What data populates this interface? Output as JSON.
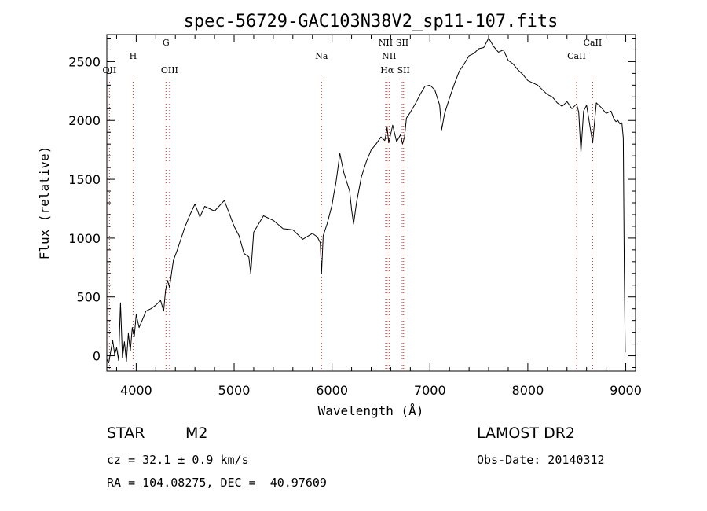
{
  "chart_data": {
    "type": "line",
    "title": "spec-56729-GAC103N38V2_sp11-107.fits",
    "xlabel": "Wavelength (Å)",
    "ylabel": "Flux (relative)",
    "xlim": [
      3700,
      9100
    ],
    "ylim": [
      -130,
      2730
    ],
    "x_ticks": [
      4000,
      5000,
      6000,
      7000,
      8000,
      9000
    ],
    "y_ticks": [
      0,
      500,
      1000,
      1500,
      2000,
      2500
    ],
    "grid": false,
    "series": [
      {
        "x": [
          3700,
          3720,
          3740,
          3760,
          3780,
          3800,
          3820,
          3840,
          3860,
          3880,
          3900,
          3920,
          3940,
          3960,
          3980,
          4000,
          4030,
          4060,
          4100,
          4150,
          4200,
          4250,
          4280,
          4300,
          4320,
          4340,
          4360,
          4380,
          4420,
          4460,
          4500,
          4550,
          4600,
          4650,
          4700,
          4800,
          4900,
          5000,
          5050,
          5100,
          5150,
          5170,
          5200,
          5300,
          5400,
          5500,
          5600,
          5700,
          5800,
          5850,
          5880,
          5893,
          5910,
          5950,
          6000,
          6020,
          6040,
          6060,
          6080,
          6100,
          6120,
          6150,
          6180,
          6200,
          6220,
          6250,
          6300,
          6350,
          6400,
          6450,
          6500,
          6540,
          6563,
          6580,
          6620,
          6660,
          6700,
          6720,
          6740,
          6760,
          6800,
          6850,
          6900,
          6950,
          7000,
          7050,
          7100,
          7120,
          7150,
          7200,
          7250,
          7300,
          7350,
          7400,
          7450,
          7500,
          7550,
          7600,
          7650,
          7700,
          7750,
          7800,
          7850,
          7900,
          7950,
          8000,
          8050,
          8100,
          8150,
          8200,
          8250,
          8300,
          8350,
          8400,
          8450,
          8498,
          8520,
          8542,
          8570,
          8600,
          8662,
          8700,
          8750,
          8800,
          8850,
          8880,
          8900,
          8920,
          8940,
          8960,
          8975,
          8985,
          8995
        ],
        "y": [
          -30,
          -60,
          40,
          130,
          10,
          70,
          -40,
          450,
          -20,
          120,
          -50,
          190,
          40,
          240,
          160,
          350,
          240,
          300,
          380,
          400,
          430,
          470,
          380,
          560,
          640,
          580,
          700,
          810,
          900,
          1000,
          1100,
          1200,
          1290,
          1180,
          1270,
          1230,
          1320,
          1100,
          1020,
          870,
          840,
          700,
          1050,
          1190,
          1150,
          1080,
          1070,
          990,
          1040,
          1010,
          960,
          700,
          1020,
          1120,
          1280,
          1380,
          1470,
          1590,
          1720,
          1640,
          1560,
          1480,
          1400,
          1240,
          1120,
          1300,
          1520,
          1650,
          1750,
          1800,
          1860,
          1830,
          1940,
          1810,
          1960,
          1820,
          1880,
          1800,
          1860,
          2020,
          2070,
          2140,
          2220,
          2290,
          2300,
          2260,
          2130,
          1920,
          2060,
          2190,
          2310,
          2420,
          2480,
          2550,
          2570,
          2610,
          2620,
          2700,
          2630,
          2580,
          2600,
          2510,
          2480,
          2430,
          2390,
          2340,
          2320,
          2300,
          2260,
          2220,
          2200,
          2150,
          2120,
          2160,
          2100,
          2140,
          2070,
          1730,
          2080,
          2130,
          1810,
          2150,
          2110,
          2060,
          2080,
          2010,
          1990,
          2000,
          1970,
          1980,
          1850,
          700,
          30
        ]
      }
    ],
    "line_markers": [
      {
        "x": 3727,
        "name": "OII"
      },
      {
        "x": 3968,
        "name": "H"
      },
      {
        "x": 4304,
        "name": "G"
      },
      {
        "x": 4341,
        "name": "OIII"
      },
      {
        "x": 5893,
        "name": "Na"
      },
      {
        "x": 6548,
        "name": "NII"
      },
      {
        "x": 6563,
        "name": "Hα"
      },
      {
        "x": 6583,
        "name": "NII"
      },
      {
        "x": 6717,
        "name": "SII"
      },
      {
        "x": 6731,
        "name": "SII"
      },
      {
        "x": 8498,
        "name": "CaII"
      },
      {
        "x": 8662,
        "name": "CaII"
      }
    ],
    "colors": {
      "spectrum": "#000000",
      "markers": "#cc2b2b",
      "text": "#000000"
    }
  },
  "info": {
    "class_label": "STAR",
    "subclass": "M2",
    "survey": "LAMOST DR2",
    "cz": "cz = 32.1 ± 0.9 km/s",
    "obs_date": "Obs-Date: 20140312",
    "coords": "RA = 104.08275, DEC =  40.97609"
  }
}
